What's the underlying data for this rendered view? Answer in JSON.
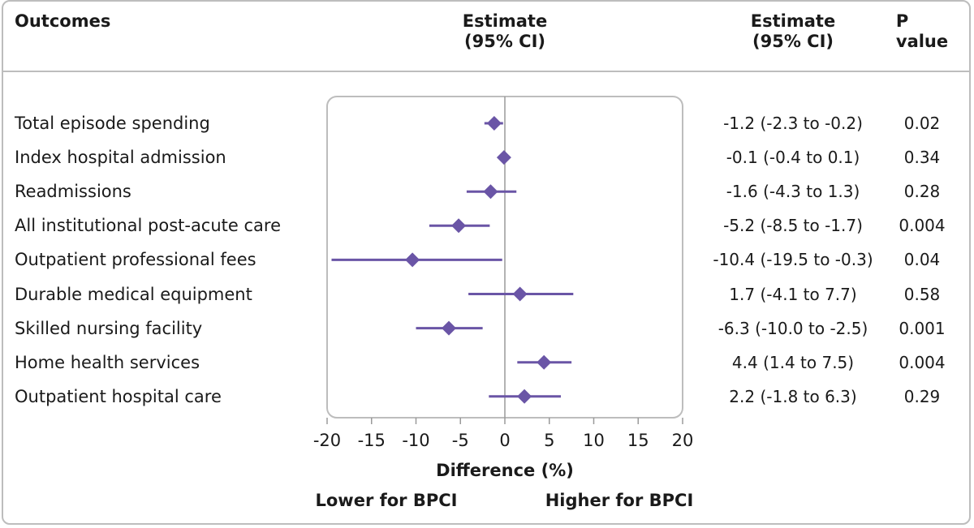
{
  "header": {
    "outcomes": "Outcomes",
    "estimate_plot": [
      "Estimate",
      "(95% CI)"
    ],
    "estimate_col": [
      "Estimate",
      "(95% CI)"
    ],
    "pvalue": "P value"
  },
  "chart_data": {
    "type": "forest",
    "xlabel": "Difference (%)",
    "xlim": [
      -20,
      20
    ],
    "xticks": [
      -20,
      -15,
      -10,
      -5,
      0,
      5,
      10,
      15,
      20
    ],
    "direction_labels": {
      "left": "Lower for BPCI",
      "right": "Higher for BPCI"
    },
    "marker_color": "#6a55a6",
    "rows": [
      {
        "label": "Total episode spending",
        "estimate": -1.2,
        "lower": -2.3,
        "upper": -0.2,
        "ci_text": "-1.2 (-2.3 to -0.2)",
        "p": "0.02"
      },
      {
        "label": "Index hospital admission",
        "estimate": -0.1,
        "lower": -0.4,
        "upper": 0.1,
        "ci_text": "-0.1 (-0.4 to 0.1)",
        "p": "0.34"
      },
      {
        "label": "Readmissions",
        "estimate": -1.6,
        "lower": -4.3,
        "upper": 1.3,
        "ci_text": "-1.6 (-4.3 to 1.3)",
        "p": "0.28"
      },
      {
        "label": "All institutional post-acute care",
        "estimate": -5.2,
        "lower": -8.5,
        "upper": -1.7,
        "ci_text": "-5.2 (-8.5 to -1.7)",
        "p": "0.004"
      },
      {
        "label": "Outpatient professional fees",
        "estimate": -10.4,
        "lower": -19.5,
        "upper": -0.3,
        "ci_text": "-10.4 (-19.5 to -0.3)",
        "p": "0.04"
      },
      {
        "label": "Durable medical equipment",
        "estimate": 1.7,
        "lower": -4.1,
        "upper": 7.7,
        "ci_text": "1.7 (-4.1 to 7.7)",
        "p": "0.58"
      },
      {
        "label": "Skilled nursing facility",
        "estimate": -6.3,
        "lower": -10.0,
        "upper": -2.5,
        "ci_text": "-6.3 (-10.0 to -2.5)",
        "p": "0.001"
      },
      {
        "label": "Home health services",
        "estimate": 4.4,
        "lower": 1.4,
        "upper": 7.5,
        "ci_text": "4.4 (1.4 to 7.5)",
        "p": "0.004"
      },
      {
        "label": "Outpatient hospital care",
        "estimate": 2.2,
        "lower": -1.8,
        "upper": 6.3,
        "ci_text": "2.2 (-1.8 to 6.3)",
        "p": "0.29"
      }
    ]
  }
}
